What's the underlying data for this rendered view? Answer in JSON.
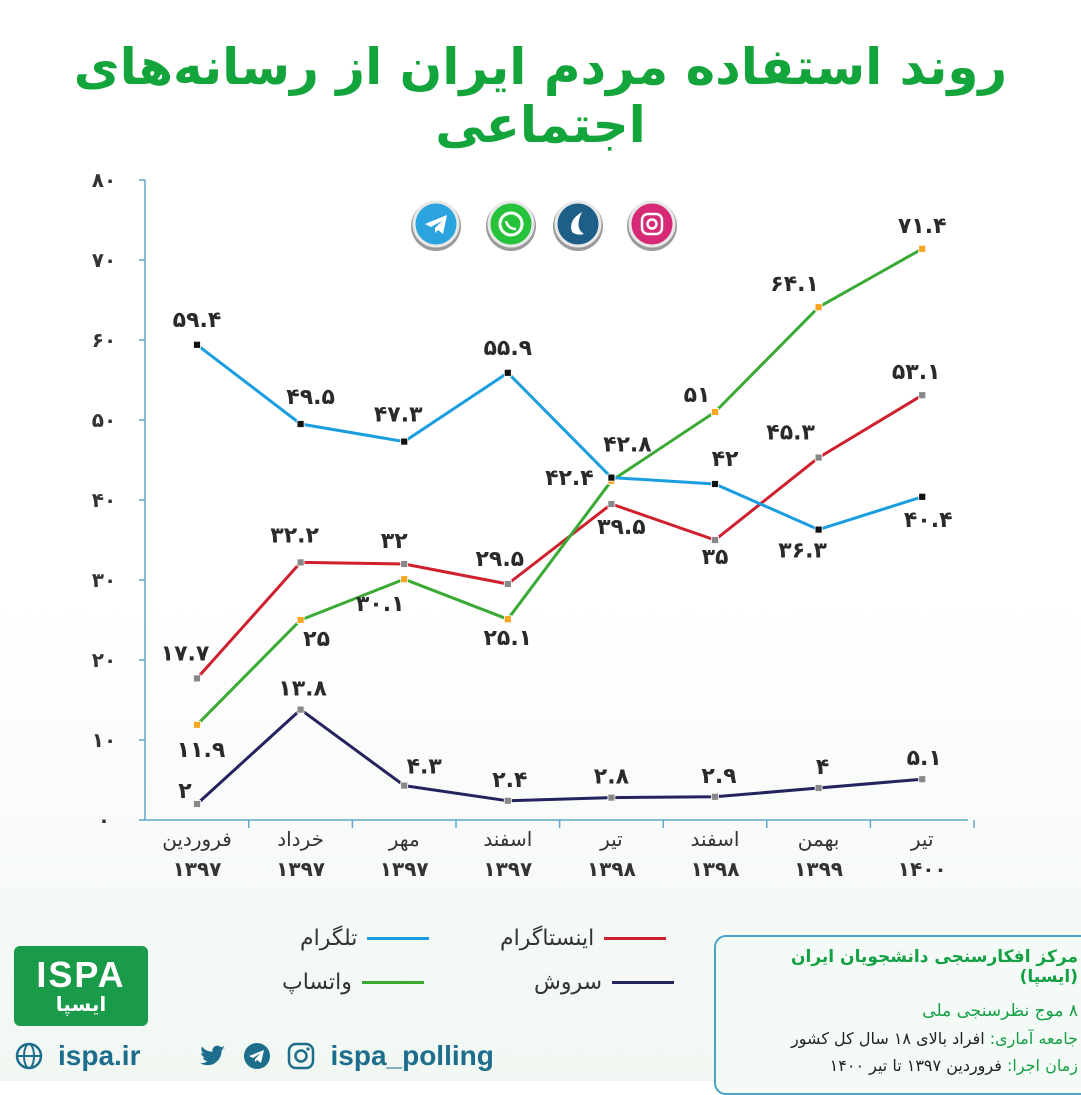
{
  "title": "روند استفاده مردم ایران از رسانه‌های اجتماعی",
  "chart_data": {
    "type": "line",
    "categories": [
      [
        "فروردین",
        "۱۳۹۷"
      ],
      [
        "خرداد",
        "۱۳۹۷"
      ],
      [
        "مهر",
        "۱۳۹۷"
      ],
      [
        "اسفند",
        "۱۳۹۷"
      ],
      [
        "تیر",
        "۱۳۹۸"
      ],
      [
        "اسفند",
        "۱۳۹۸"
      ],
      [
        "بهمن",
        "۱۳۹۹"
      ],
      [
        "تیر",
        "۱۴۰۰"
      ]
    ],
    "ylim": [
      0,
      80
    ],
    "yticks": [
      {
        "value": 0,
        "label": "۰"
      },
      {
        "value": 10,
        "label": "۱۰"
      },
      {
        "value": 20,
        "label": "۲۰"
      },
      {
        "value": 30,
        "label": "۳۰"
      },
      {
        "value": 40,
        "label": "۴۰"
      },
      {
        "value": 50,
        "label": "۵۰"
      },
      {
        "value": 60,
        "label": "۶۰"
      },
      {
        "value": 70,
        "label": "۷۰"
      },
      {
        "value": 80,
        "label": "۸۰"
      }
    ],
    "series": [
      {
        "name": "تلگرام",
        "color": "#1a9ee0",
        "marker": "#111111",
        "values": [
          59.4,
          49.5,
          47.3,
          55.9,
          42.8,
          42,
          36.3,
          40.4
        ],
        "labels": [
          "۵۹.۴",
          "۴۹.۵",
          "۴۷.۳",
          "۵۵.۹",
          "۴۲.۸",
          "۴۲",
          "۳۶.۳",
          "۴۰.۴"
        ]
      },
      {
        "name": "واتساپ",
        "color": "#3aaa35",
        "marker": "#f5a623",
        "values": [
          11.9,
          25,
          30.1,
          25.1,
          42.4,
          51,
          64.1,
          71.4
        ],
        "labels": [
          "۱۱.۹",
          "۲۵",
          "۳۰.۱",
          "۲۵.۱",
          "۴۲.۴",
          "۵۱",
          "۶۴.۱",
          "۷۱.۴"
        ]
      },
      {
        "name": "اینستاگرام",
        "color": "#d0202e",
        "marker": "#888888",
        "values": [
          17.7,
          32.2,
          32,
          29.5,
          39.5,
          35,
          45.3,
          53.1
        ],
        "labels": [
          "۱۷.۷",
          "۳۲.۲",
          "۳۲",
          "۲۹.۵",
          "۳۹.۵",
          "۳۵",
          "۴۵.۳",
          "۵۳.۱"
        ]
      },
      {
        "name": "سروش",
        "color": "#23245e",
        "marker": "#888888",
        "values": [
          2,
          13.8,
          4.3,
          2.4,
          2.8,
          2.9,
          4,
          5.1
        ],
        "labels": [
          "۲",
          "۱۳.۸",
          "۴.۳",
          "۲.۴",
          "۲.۸",
          "۲.۹",
          "۴",
          "۵.۱"
        ]
      }
    ],
    "grid": false,
    "legend": "bottom"
  },
  "app_icons": [
    {
      "name": "telegram-icon",
      "color": "#2aa3df"
    },
    {
      "name": "whatsapp-icon",
      "color": "#25c23a"
    },
    {
      "name": "soroush-icon",
      "color": "#1d5f86"
    },
    {
      "name": "instagram-icon",
      "color": "#d62976"
    }
  ],
  "info": {
    "org": "مرکز افکارسنجی دانشجویان ایران (ایسپا)",
    "waves": "۸ موج نظرسنجی ملی",
    "population_key": "جامعه آماری:",
    "population_value": "افراد بالای ۱۸ سال کل کشور",
    "period_key": "زمان اجرا:",
    "period_value": "فروردین ۱۳۹۷ تا تیر ۱۴۰۰"
  },
  "logo": {
    "latin": "ISPA",
    "persian": "ایسپا"
  },
  "footer": {
    "website": "ispa.ir",
    "handle": "ispa_polling"
  }
}
